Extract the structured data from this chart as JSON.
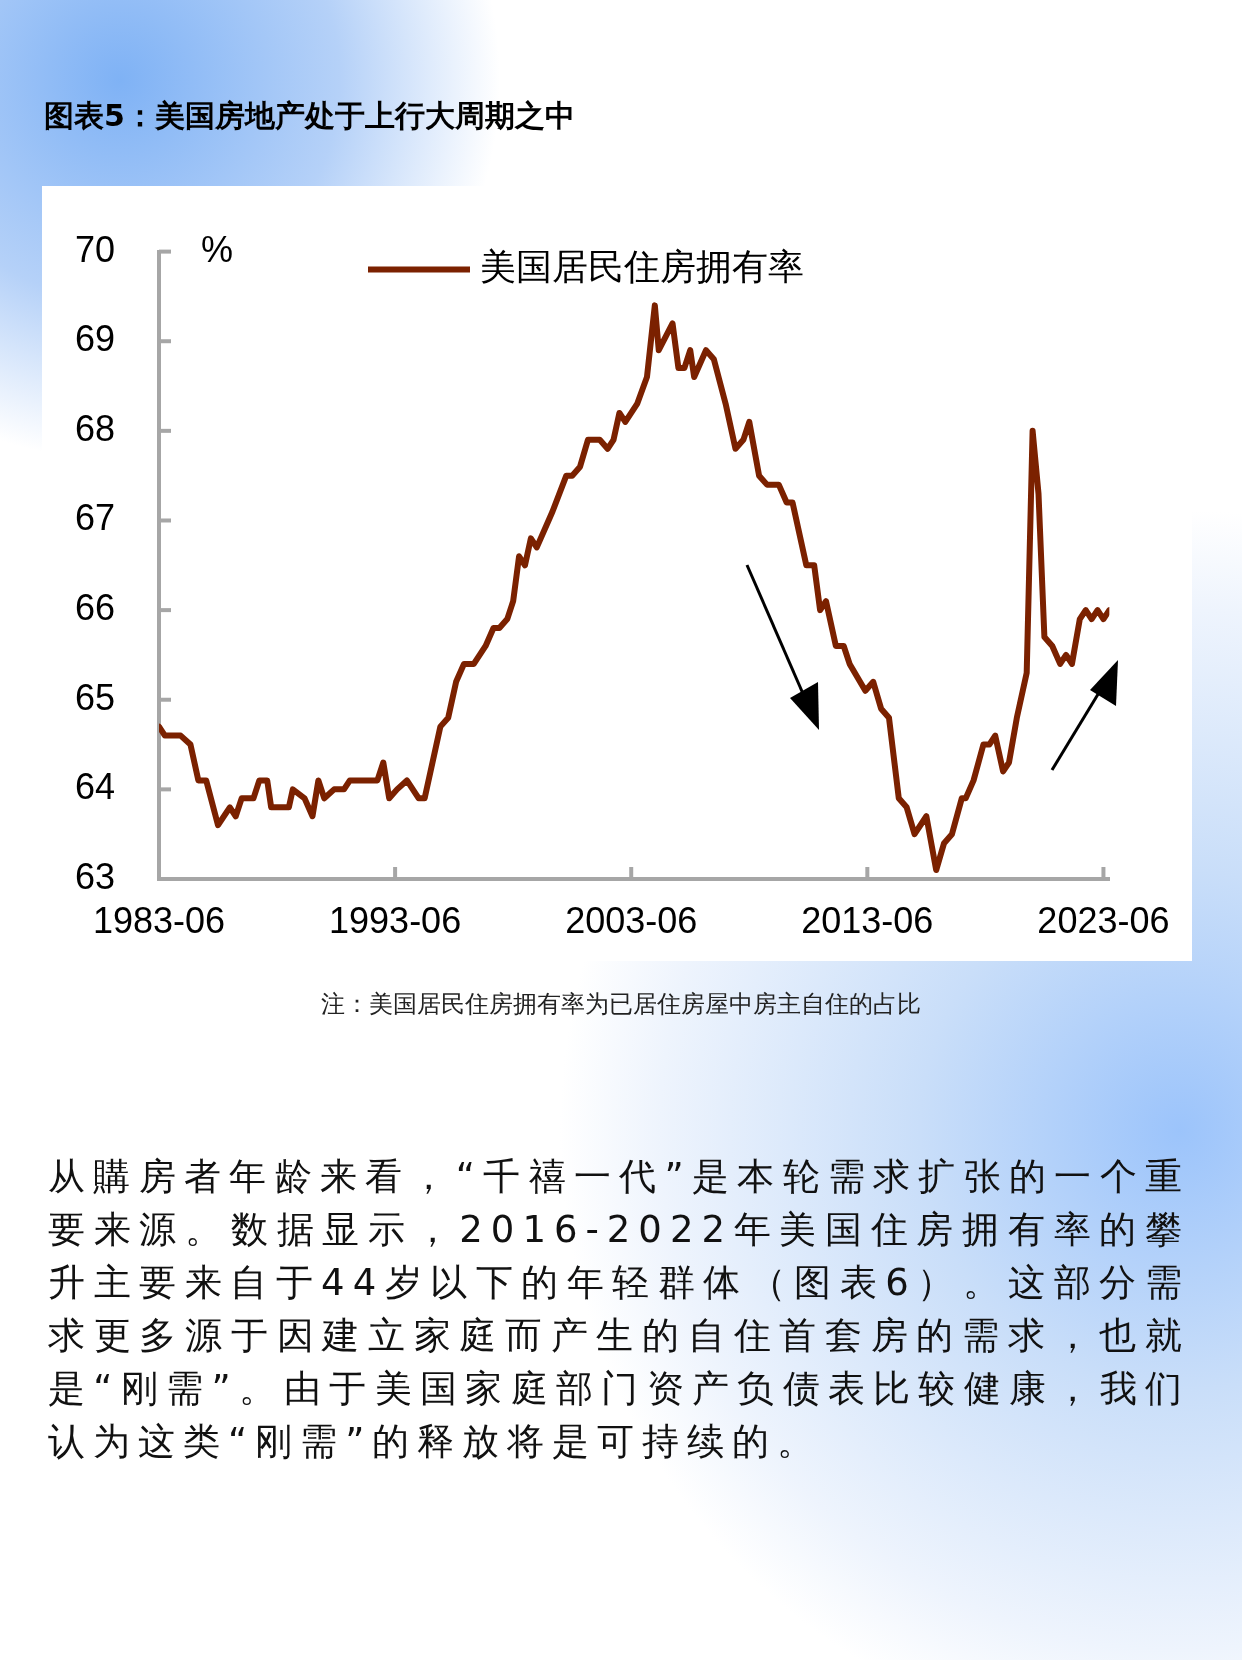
{
  "chart_data": {
    "type": "line",
    "title": "图表5：美国房地产处于上行大周期之中",
    "ylabel": "%",
    "legend": "top",
    "xlim": [
      "1983-06",
      "2023-09"
    ],
    "xticks": [
      "1983-06",
      "1993-06",
      "2003-06",
      "2013-06",
      "2023-06"
    ],
    "ylim": [
      63,
      70
    ],
    "yticks": [
      63,
      64,
      65,
      66,
      67,
      68,
      69,
      70
    ],
    "x": [
      "1983-06",
      "1983-09",
      "1984-05",
      "1984-10",
      "1985-02",
      "1985-06",
      "1985-12",
      "1986-06",
      "1986-09",
      "1986-12",
      "1987-06",
      "1987-09",
      "1988-01",
      "1988-03",
      "1988-12",
      "1989-02",
      "1989-08",
      "1989-12",
      "1990-03",
      "1990-06",
      "1990-11",
      "1991-04",
      "1991-07",
      "1992-09",
      "1992-12",
      "1993-03",
      "1993-07",
      "1993-12",
      "1994-06",
      "1994-09",
      "1995-05",
      "1995-09",
      "1996-01",
      "1996-05",
      "1996-10",
      "1997-01",
      "1997-04",
      "1997-08",
      "1997-11",
      "1998-03",
      "1998-06",
      "1998-09",
      "1998-12",
      "1999-03",
      "1999-06",
      "1999-12",
      "2000-02",
      "2000-09",
      "2000-12",
      "2001-04",
      "2001-08",
      "2002-02",
      "2002-06",
      "2002-09",
      "2002-12",
      "2003-03",
      "2003-09",
      "2004-02",
      "2004-06",
      "2004-08",
      "2005-03",
      "2005-06",
      "2005-09",
      "2005-12",
      "2006-02",
      "2006-08",
      "2006-12",
      "2007-06",
      "2007-11",
      "2008-03",
      "2008-06",
      "2008-11",
      "2009-03",
      "2009-09",
      "2010-01",
      "2010-04",
      "2010-11",
      "2011-03",
      "2011-06",
      "2011-09",
      "2012-02",
      "2012-06",
      "2012-09",
      "2013-05",
      "2013-09",
      "2014-01",
      "2014-05",
      "2014-10",
      "2015-02",
      "2015-06",
      "2015-12",
      "2016-05",
      "2016-09",
      "2017-01",
      "2017-06",
      "2017-08",
      "2017-12",
      "2018-05",
      "2018-08",
      "2018-11",
      "2019-03",
      "2019-06",
      "2019-10",
      "2020-03",
      "2020-06",
      "2020-09",
      "2020-12",
      "2021-04",
      "2021-08",
      "2021-11",
      "2022-02",
      "2022-06",
      "2022-09",
      "2022-12",
      "2023-03",
      "2023-06",
      "2023-09"
    ],
    "series": [
      {
        "name": "美国居民住房拥有率",
        "color": "#7b2100",
        "values": [
          64.7,
          64.6,
          64.6,
          64.5,
          64.1,
          64.1,
          63.6,
          63.8,
          63.7,
          63.9,
          63.9,
          64.1,
          64.1,
          63.8,
          63.8,
          64.0,
          63.9,
          63.7,
          64.1,
          63.9,
          64.0,
          64.0,
          64.1,
          64.1,
          64.3,
          63.9,
          64.0,
          64.1,
          63.9,
          63.9,
          64.7,
          64.8,
          65.2,
          65.4,
          65.4,
          65.5,
          65.6,
          65.8,
          65.8,
          65.9,
          66.1,
          66.6,
          66.5,
          66.8,
          66.7,
          67.0,
          67.1,
          67.5,
          67.5,
          67.6,
          67.9,
          67.9,
          67.8,
          67.9,
          68.2,
          68.1,
          68.3,
          68.6,
          69.4,
          68.9,
          69.2,
          68.7,
          68.7,
          68.9,
          68.6,
          68.9,
          68.8,
          68.3,
          67.8,
          67.9,
          68.1,
          67.5,
          67.4,
          67.4,
          67.2,
          67.2,
          66.5,
          66.5,
          66.0,
          66.1,
          65.6,
          65.6,
          65.4,
          65.1,
          65.2,
          64.9,
          64.8,
          63.9,
          63.8,
          63.5,
          63.7,
          63.1,
          63.4,
          63.5,
          63.9,
          63.9,
          64.1,
          64.5,
          64.5,
          64.6,
          64.2,
          64.3,
          64.8,
          65.3,
          68.0,
          67.3,
          65.7,
          65.6,
          65.4,
          65.5,
          65.4,
          65.9,
          66.0,
          65.9,
          66.0,
          65.9,
          66.0
        ]
      }
    ],
    "annotations": [
      "注：美国居民住房拥有率为已居住房屋中房主自住的占比",
      "从購房者年龄来看，“千禧一代”是本轮需求扩张的一个重要来源。数据显示，2016-2022年美国住房拥有率的攀升主要来自于44岁以下的年轻群体（图表6）。这部分需求更多源于因建立家庭而产生的自住首套房的需求，也就是“刚需”。由于美国家庭部门资产负债表比较健康，我们认为这类“刚需”的释放将是可持续的。"
    ]
  }
}
